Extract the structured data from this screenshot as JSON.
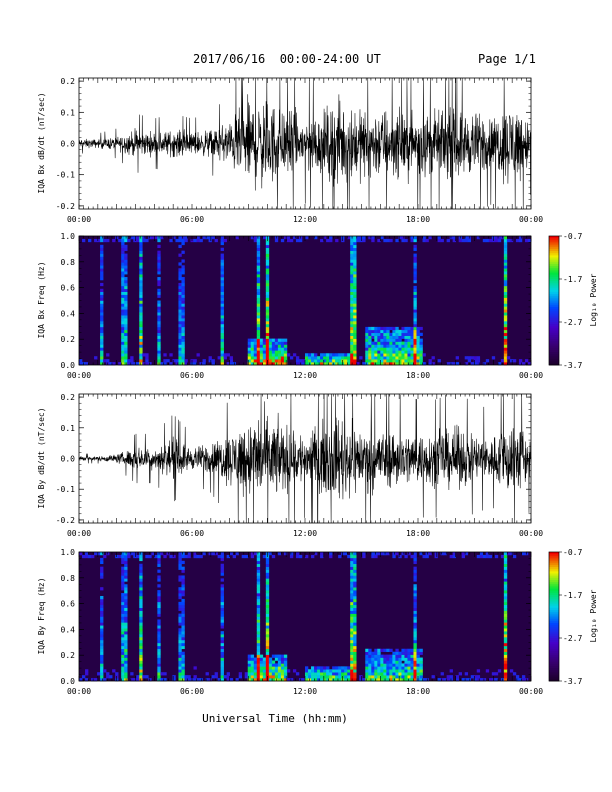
{
  "header": {
    "title": "2017/06/16  00:00-24:00 UT",
    "page": "Page 1/1"
  },
  "xlabel": "Universal Time (hh:mm)",
  "time_ticks": [
    "00:00",
    "06:00",
    "12:00",
    "18:00",
    "00:00"
  ],
  "colors": {
    "trace": "#000000",
    "spec_bg": "#250045",
    "frame": "#000000"
  },
  "colorbar": {
    "label": "Log₁₀ Power",
    "ticks": [
      "-0.7",
      "-1.7",
      "-2.7",
      "-3.7"
    ],
    "range": [
      -3.7,
      -0.7
    ]
  },
  "chart_data": [
    {
      "type": "line",
      "ylabel": "IQA Bx dB/dt (nT/sec)",
      "ylim": [
        -0.21,
        0.21
      ],
      "yticks": [
        "0.2",
        "0.1",
        "0.0",
        "-0.1",
        "-0.2"
      ],
      "x_hours": [
        0,
        1,
        2,
        3,
        4,
        5,
        6,
        7,
        8,
        9,
        10,
        11,
        12,
        13,
        14,
        15,
        16,
        17,
        18,
        19,
        20,
        21,
        22,
        23,
        24
      ],
      "envelope": [
        0.02,
        0.02,
        0.03,
        0.06,
        0.05,
        0.06,
        0.05,
        0.06,
        0.1,
        0.2,
        0.2,
        0.15,
        0.12,
        0.15,
        0.2,
        0.15,
        0.16,
        0.15,
        0.14,
        0.14,
        0.15,
        0.14,
        0.12,
        0.2,
        0.1
      ]
    },
    {
      "type": "heatmap",
      "ylabel": "IQA Bx Freq (Hz)",
      "ylim": [
        0,
        1.0
      ],
      "yticks": [
        "1.0",
        "0.8",
        "0.6",
        "0.4",
        "0.2",
        "0.0"
      ],
      "bursts": [
        {
          "t": 1.2,
          "strength": 0.4
        },
        {
          "t": 2.4,
          "strength": 0.5
        },
        {
          "t": 3.3,
          "strength": 0.7
        },
        {
          "t": 4.2,
          "strength": 0.4
        },
        {
          "t": 5.4,
          "strength": 0.4
        },
        {
          "t": 7.6,
          "strength": 0.5
        },
        {
          "t": 9.5,
          "strength": 0.7
        },
        {
          "t": 10.0,
          "strength": 0.85
        },
        {
          "t": 14.6,
          "strength": 0.8
        },
        {
          "t": 17.8,
          "strength": 0.5
        },
        {
          "t": 22.6,
          "strength": 0.95
        }
      ],
      "bands": [
        {
          "t0": 9.0,
          "t1": 11.0,
          "fmax": 0.2,
          "strength": 0.7
        },
        {
          "t0": 12.0,
          "t1": 14.5,
          "fmax": 0.1,
          "strength": 0.55
        },
        {
          "t0": 15.2,
          "t1": 18.3,
          "fmax": 0.3,
          "strength": 0.6
        }
      ]
    },
    {
      "type": "line",
      "ylabel": "IQA By dB/dt (nT/sec)",
      "ylim": [
        -0.21,
        0.21
      ],
      "yticks": [
        "0.2",
        "0.1",
        "0.0",
        "-0.1",
        "-0.2"
      ],
      "x_hours": [
        0,
        1,
        2,
        3,
        4,
        5,
        6,
        7,
        8,
        9,
        10,
        11,
        12,
        13,
        14,
        15,
        16,
        17,
        18,
        19,
        20,
        21,
        22,
        23,
        24
      ],
      "envelope": [
        0.01,
        0.01,
        0.02,
        0.05,
        0.05,
        0.09,
        0.05,
        0.07,
        0.12,
        0.18,
        0.2,
        0.15,
        0.12,
        0.16,
        0.2,
        0.14,
        0.14,
        0.13,
        0.12,
        0.12,
        0.14,
        0.11,
        0.1,
        0.2,
        0.1
      ]
    },
    {
      "type": "heatmap",
      "ylabel": "IQA By Freq (Hz)",
      "ylim": [
        0,
        1.0
      ],
      "yticks": [
        "1.0",
        "0.8",
        "0.6",
        "0.4",
        "0.2",
        "0.0"
      ],
      "bursts": [
        {
          "t": 1.2,
          "strength": 0.4
        },
        {
          "t": 2.4,
          "strength": 0.5
        },
        {
          "t": 3.3,
          "strength": 0.65
        },
        {
          "t": 4.2,
          "strength": 0.4
        },
        {
          "t": 5.4,
          "strength": 0.4
        },
        {
          "t": 7.6,
          "strength": 0.45
        },
        {
          "t": 9.5,
          "strength": 0.65
        },
        {
          "t": 10.0,
          "strength": 0.8
        },
        {
          "t": 14.6,
          "strength": 0.75
        },
        {
          "t": 17.8,
          "strength": 0.5
        },
        {
          "t": 22.6,
          "strength": 0.9
        }
      ],
      "bands": [
        {
          "t0": 9.0,
          "t1": 11.0,
          "fmax": 0.2,
          "strength": 0.65
        },
        {
          "t0": 12.0,
          "t1": 14.5,
          "fmax": 0.12,
          "strength": 0.5
        },
        {
          "t0": 15.2,
          "t1": 18.3,
          "fmax": 0.25,
          "strength": 0.55
        }
      ]
    }
  ]
}
